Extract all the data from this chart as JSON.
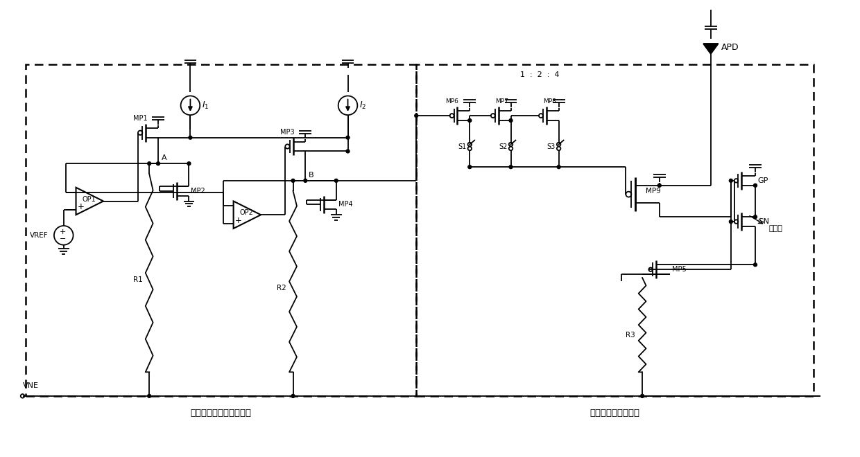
{
  "bg_color": "#ffffff",
  "line_color": "#000000",
  "fig_width": 12.4,
  "fig_height": 6.6,
  "module1_label": "像素外偏置电压产生模块",
  "module2_label": "像素内偏压调节模块",
  "apd_label": "APD",
  "ratio_label": "1  :  2  :  4",
  "vne_label": "VNE",
  "vref_label": "VREF",
  "float_gnd_label": "浮动地"
}
